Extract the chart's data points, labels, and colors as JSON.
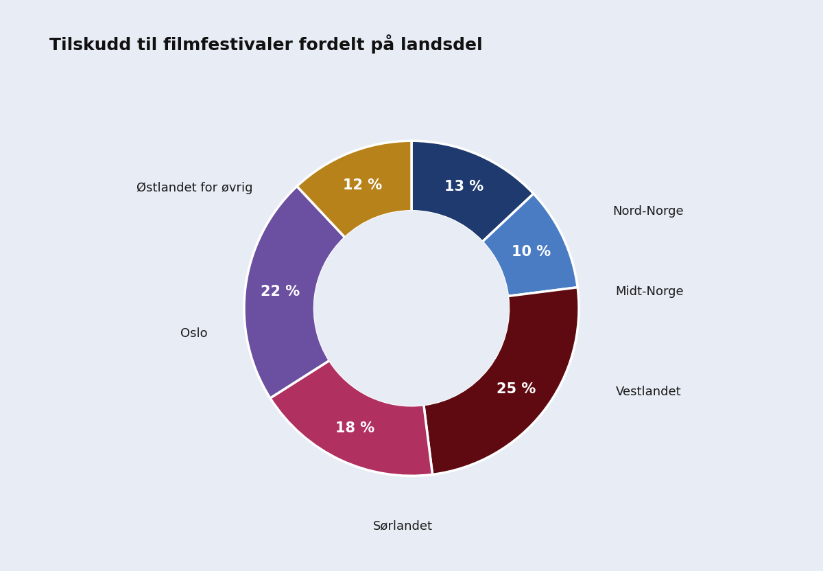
{
  "title": "Tilskudd til filmfestivaler fordelt på landsdel",
  "labels": [
    "Nord-Norge",
    "Midt-Norge",
    "Vestlandet",
    "Sørlandet",
    "Oslo",
    "Østlandet for øvrig"
  ],
  "values": [
    13,
    10,
    25,
    18,
    22,
    12
  ],
  "colors": [
    "#1e3a6e",
    "#4a7cc4",
    "#5e0a10",
    "#b03060",
    "#6b4fa0",
    "#b8821a"
  ],
  "pct_labels": [
    "13 %",
    "10 %",
    "25 %",
    "18 %",
    "22 %",
    "12 %"
  ],
  "background_color": "#e8ecf5",
  "title_fontsize": 18,
  "label_fontsize": 13,
  "pct_fontsize": 15
}
